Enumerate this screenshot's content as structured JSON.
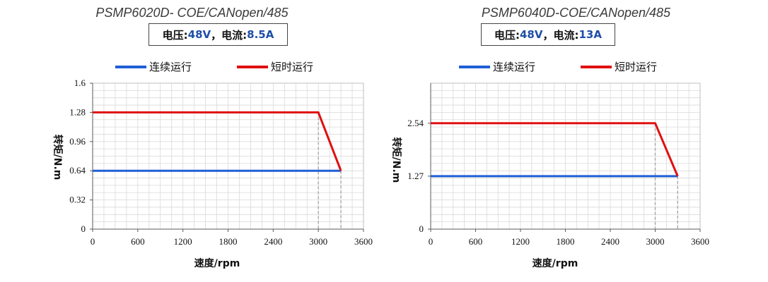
{
  "colors": {
    "continuous": "#1f5fd6",
    "short": "#e01010",
    "grid": "#d9d9d9",
    "drop": "#a6a6a6",
    "value": "#1f4ea8"
  },
  "charts": [
    {
      "title": "PSMP6020D- COE/CANopen/485",
      "voltage_label": "电压:",
      "voltage_value": "48V",
      "separator": "，",
      "current_label": "电流:",
      "current_value": "8.5A",
      "legend": [
        "连续运行",
        "短时运行"
      ],
      "ylabel": "转矩/N.m",
      "xlabel": "速度/rpm"
    },
    {
      "title": "PSMP6040D-COE/CANopen/485",
      "voltage_label": "电压:",
      "voltage_value": "48V",
      "separator": "，",
      "current_label": "电流:",
      "current_value": "13A",
      "legend": [
        "连续运行",
        "短时运行"
      ],
      "ylabel": "转矩/N.m",
      "xlabel": "速度/rpm"
    }
  ],
  "chart_data": [
    {
      "type": "line",
      "xlim": [
        0,
        3600
      ],
      "ylim": [
        0,
        1.6
      ],
      "x_ticks": [
        "0",
        "600",
        "1200",
        "1800",
        "2400",
        "3000",
        "3600"
      ],
      "y_ticks": [
        "0",
        "0.32",
        "0.64",
        "0.96",
        "1.28",
        "1.6"
      ],
      "grid": true,
      "legend_position": "top",
      "series": [
        {
          "name": "连续运行",
          "x": [
            0,
            3300
          ],
          "y": [
            0.64,
            0.64
          ]
        },
        {
          "name": "短时运行",
          "x": [
            0,
            3000,
            3300
          ],
          "y": [
            1.28,
            1.28,
            0.64
          ]
        }
      ],
      "drop_lines_x": [
        3000,
        3300
      ]
    },
    {
      "type": "line",
      "xlim": [
        0,
        3600
      ],
      "ylim": [
        0,
        3.5
      ],
      "x_ticks": [
        "0",
        "600",
        "1200",
        "1800",
        "2400",
        "3000",
        "3600"
      ],
      "y_ticks": [
        "0",
        "1.27",
        "2.54"
      ],
      "grid": true,
      "legend_position": "top",
      "series": [
        {
          "name": "连续运行",
          "x": [
            0,
            3300
          ],
          "y": [
            1.27,
            1.27
          ]
        },
        {
          "name": "短时运行",
          "x": [
            0,
            3000,
            3300
          ],
          "y": [
            2.54,
            2.54,
            1.27
          ]
        }
      ],
      "drop_lines_x": [
        3000,
        3300
      ]
    }
  ]
}
